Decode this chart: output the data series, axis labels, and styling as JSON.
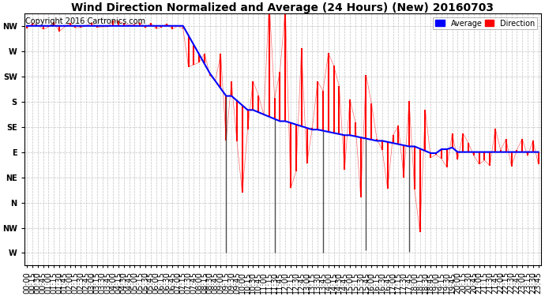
{
  "title": "Wind Direction Normalized and Average (24 Hours) (New) 20160703",
  "copyright": "Copyright 2016 Cartronics.com",
  "legend_labels": [
    "Average",
    "Direction"
  ],
  "legend_colors": [
    "blue",
    "red"
  ],
  "ytick_labels": [
    "NW",
    "W",
    "SW",
    "S",
    "SE",
    "E",
    "NE",
    "N",
    "NW",
    "W"
  ],
  "ytick_values": [
    315,
    270,
    225,
    180,
    135,
    90,
    45,
    0,
    -45,
    -90
  ],
  "ymin": -112.5,
  "ymax": 337.5,
  "background_color": "#ffffff",
  "grid_color": "#bbbbbb",
  "title_fontsize": 10,
  "copyright_fontsize": 7,
  "axis_label_fontsize": 7,
  "n_points": 96
}
